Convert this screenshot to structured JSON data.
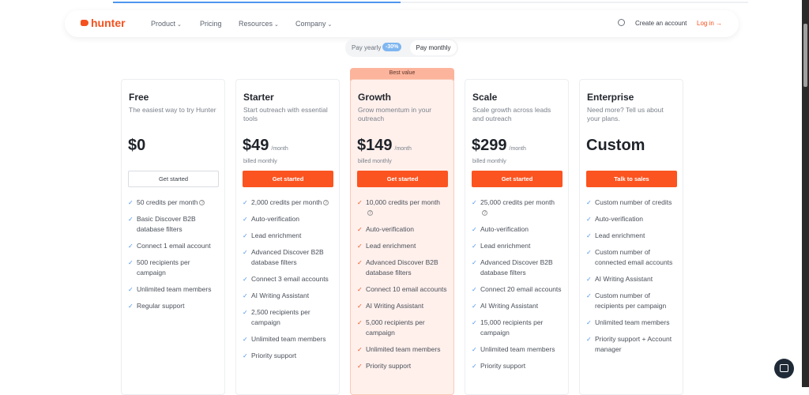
{
  "nav": {
    "brand": "hunter",
    "items": [
      {
        "label": "Product",
        "dropdown": true
      },
      {
        "label": "Pricing",
        "dropdown": false
      },
      {
        "label": "Resources",
        "dropdown": true
      },
      {
        "label": "Company",
        "dropdown": true
      }
    ],
    "create_account": "Create an account",
    "login": "Log in →"
  },
  "billing": {
    "yearly": "Pay yearly",
    "discount": "-30%",
    "monthly": "Pay monthly",
    "selected": "monthly"
  },
  "colors": {
    "accent": "#fb5420",
    "check_blue": "#4d95ee",
    "highlight_bg": "#fff0ec"
  },
  "plans": [
    {
      "name": "Free",
      "desc": "The easiest way to try Hunter",
      "price": "$0",
      "per": "",
      "billed": "",
      "cta": "Get started",
      "features": [
        "50 credits per month",
        "Basic Discover B2B database filters",
        "Connect 1 email account",
        "500 recipients per campaign",
        "Unlimited team members",
        "Regular support"
      ]
    },
    {
      "name": "Starter",
      "desc": "Start outreach with essential tools",
      "price": "$49",
      "per": "/month",
      "billed": "billed monthly",
      "cta": "Get started",
      "features": [
        "2,000 credits per month",
        "Auto-verification",
        "Lead enrichment",
        "Advanced Discover B2B database filters",
        "Connect 3 email accounts",
        "AI Writing Assistant",
        "2,500 recipients per campaign",
        "Unlimited team members",
        "Priority support"
      ]
    },
    {
      "name": "Growth",
      "badge": "Best value",
      "desc": "Grow momentum in your outreach",
      "price": "$149",
      "per": "/month",
      "billed": "billed monthly",
      "cta": "Get started",
      "features": [
        "10,000 credits per month",
        "Auto-verification",
        "Lead enrichment",
        "Advanced Discover B2B database filters",
        "Connect 10 email accounts",
        "AI Writing Assistant",
        "5,000 recipients per campaign",
        "Unlimited team members",
        "Priority support"
      ]
    },
    {
      "name": "Scale",
      "desc": "Scale growth across leads and outreach",
      "price": "$299",
      "per": "/month",
      "billed": "billed monthly",
      "cta": "Get started",
      "features": [
        "25,000 credits per month",
        "Auto-verification",
        "Lead enrichment",
        "Advanced Discover B2B database filters",
        "Connect 20 email accounts",
        "AI Writing Assistant",
        "15,000 recipients per campaign",
        "Unlimited team members",
        "Priority support"
      ]
    },
    {
      "name": "Enterprise",
      "desc": "Need more? Tell us about your plans.",
      "price": "Custom",
      "per": "",
      "billed": "",
      "cta": "Talk to sales",
      "features": [
        "Custom number of credits",
        "Auto-verification",
        "Lead enrichment",
        "Custom number of connected email accounts",
        "AI Writing Assistant",
        "Custom number of recipients per campaign",
        "Unlimited team members",
        "Priority support + Account manager"
      ]
    }
  ]
}
